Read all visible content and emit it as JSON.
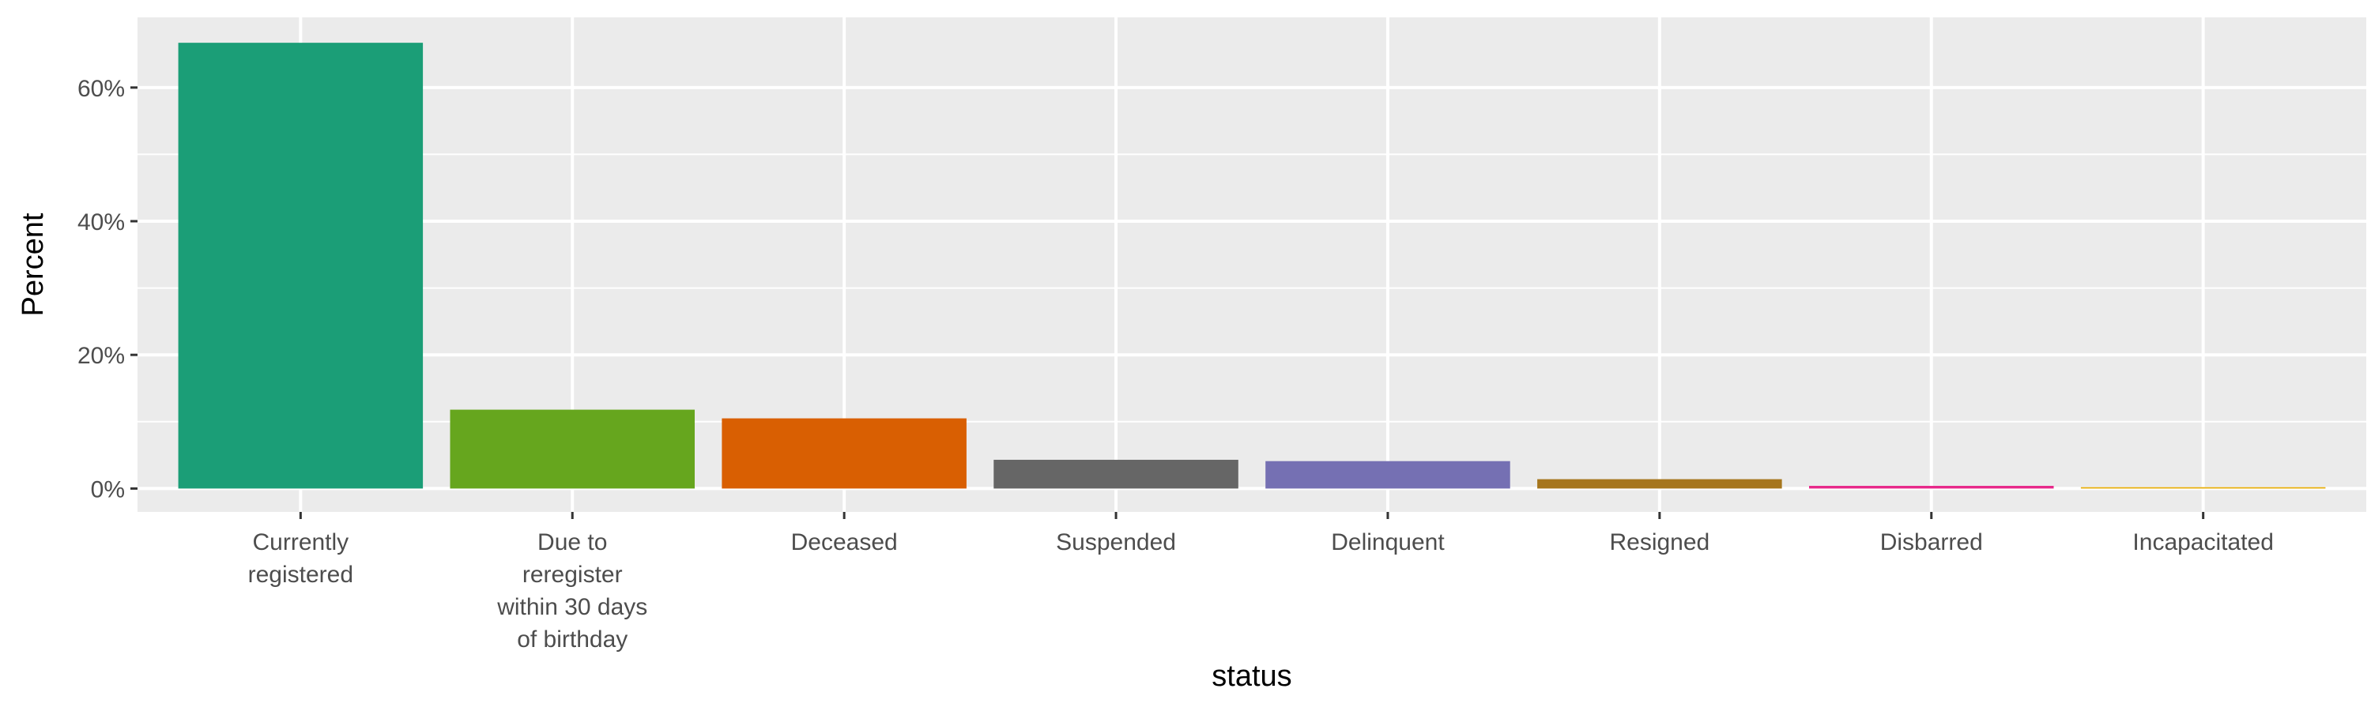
{
  "chart_data": {
    "type": "bar",
    "xlabel": "status",
    "ylabel": "Percent",
    "ylim": [
      -0.035,
      0.705
    ],
    "y_ticks": [
      0,
      0.2,
      0.4,
      0.6
    ],
    "y_tick_labels": [
      "0%",
      "20%",
      "40%",
      "60%"
    ],
    "grid": true,
    "legend": "none",
    "categories": [
      "Currently registered",
      "Due to reregister within 30 days of birthday",
      "Deceased",
      "Suspended",
      "Delinquent",
      "Resigned",
      "Disbarred",
      "Incapacitated"
    ],
    "category_label_lines": [
      [
        "Currently",
        "registered"
      ],
      [
        "Due to",
        "reregister",
        "within 30 days",
        "of birthday"
      ],
      [
        "Deceased"
      ],
      [
        "Suspended"
      ],
      [
        "Delinquent"
      ],
      [
        "Resigned"
      ],
      [
        "Disbarred"
      ],
      [
        "Incapacitated"
      ]
    ],
    "values": [
      0.667,
      0.118,
      0.105,
      0.043,
      0.041,
      0.014,
      0.004,
      0.002
    ],
    "colors": [
      "#1b9e77",
      "#66a61e",
      "#d95f02",
      "#666666",
      "#7570b3",
      "#a6761d",
      "#e7298a",
      "#e6ab02"
    ],
    "panel_background": "#ebebeb",
    "grid_color": "#ffffff"
  }
}
